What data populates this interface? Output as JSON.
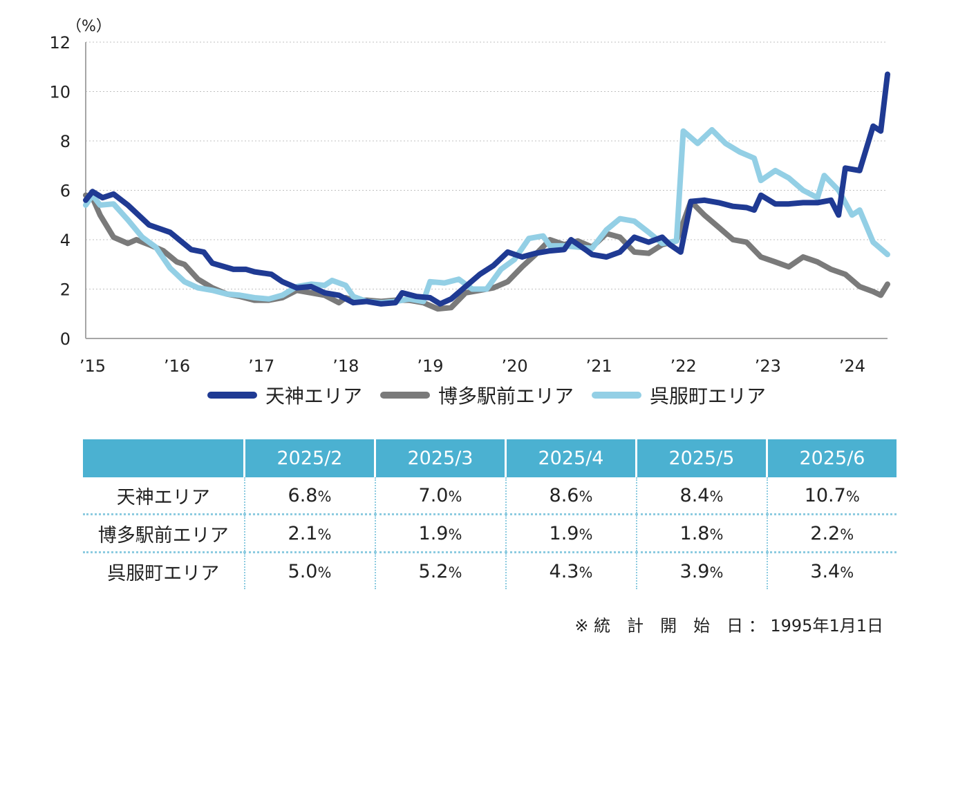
{
  "chart_data": {
    "type": "line",
    "unit_label": "（%）",
    "ylim": [
      0,
      12
    ],
    "yticks": [
      "0",
      "2",
      "4",
      "6",
      "8",
      "10",
      "12"
    ],
    "xlim": [
      2015.0,
      2024.5
    ],
    "xticks": [
      {
        "x": 2015,
        "label": "’15"
      },
      {
        "x": 2016,
        "label": "’16"
      },
      {
        "x": 2017,
        "label": "’17"
      },
      {
        "x": 2018,
        "label": "’18"
      },
      {
        "x": 2019,
        "label": "’19"
      },
      {
        "x": 2020,
        "label": "’20"
      },
      {
        "x": 2021,
        "label": "’21"
      },
      {
        "x": 2022,
        "label": "’22"
      },
      {
        "x": 2023,
        "label": "’23"
      },
      {
        "x": 2024,
        "label": "’24"
      }
    ],
    "grid": true,
    "series": [
      {
        "name": "天神エリア",
        "color": "#1f3a93",
        "points": [
          [
            2015.0,
            5.6
          ],
          [
            2015.08,
            5.95
          ],
          [
            2015.2,
            5.7
          ],
          [
            2015.33,
            5.85
          ],
          [
            2015.5,
            5.4
          ],
          [
            2015.75,
            4.6
          ],
          [
            2016.0,
            4.3
          ],
          [
            2016.25,
            3.6
          ],
          [
            2016.4,
            3.5
          ],
          [
            2016.5,
            3.05
          ],
          [
            2016.75,
            2.8
          ],
          [
            2016.9,
            2.8
          ],
          [
            2017.0,
            2.7
          ],
          [
            2017.2,
            2.6
          ],
          [
            2017.33,
            2.3
          ],
          [
            2017.5,
            2.05
          ],
          [
            2017.67,
            2.1
          ],
          [
            2017.83,
            1.85
          ],
          [
            2018.0,
            1.75
          ],
          [
            2018.17,
            1.45
          ],
          [
            2018.33,
            1.5
          ],
          [
            2018.5,
            1.4
          ],
          [
            2018.67,
            1.45
          ],
          [
            2018.75,
            1.85
          ],
          [
            2018.92,
            1.7
          ],
          [
            2019.08,
            1.65
          ],
          [
            2019.2,
            1.4
          ],
          [
            2019.33,
            1.6
          ],
          [
            2019.5,
            2.1
          ],
          [
            2019.67,
            2.6
          ],
          [
            2019.83,
            2.95
          ],
          [
            2020.0,
            3.5
          ],
          [
            2020.17,
            3.3
          ],
          [
            2020.33,
            3.45
          ],
          [
            2020.5,
            3.55
          ],
          [
            2020.67,
            3.6
          ],
          [
            2020.75,
            4.0
          ],
          [
            2020.92,
            3.6
          ],
          [
            2021.0,
            3.4
          ],
          [
            2021.17,
            3.3
          ],
          [
            2021.33,
            3.5
          ],
          [
            2021.5,
            4.1
          ],
          [
            2021.67,
            3.9
          ],
          [
            2021.83,
            4.1
          ],
          [
            2021.92,
            3.8
          ],
          [
            2022.05,
            3.5
          ],
          [
            2022.17,
            5.55
          ],
          [
            2022.33,
            5.6
          ],
          [
            2022.5,
            5.5
          ],
          [
            2022.67,
            5.35
          ],
          [
            2022.83,
            5.3
          ],
          [
            2022.92,
            5.2
          ],
          [
            2023.0,
            5.8
          ],
          [
            2023.17,
            5.45
          ],
          [
            2023.33,
            5.45
          ],
          [
            2023.5,
            5.5
          ],
          [
            2023.67,
            5.5
          ],
          [
            2023.83,
            5.6
          ],
          [
            2023.92,
            5.0
          ],
          [
            2024.0,
            6.9
          ],
          [
            2024.17,
            6.8
          ],
          [
            2024.33,
            8.6
          ],
          [
            2024.42,
            8.4
          ],
          [
            2024.5,
            10.7
          ]
        ]
      },
      {
        "name": "博多駅前エリア",
        "color": "#7a7a7a",
        "points": [
          [
            2015.0,
            5.8
          ],
          [
            2015.08,
            5.7
          ],
          [
            2015.17,
            5.0
          ],
          [
            2015.33,
            4.1
          ],
          [
            2015.5,
            3.85
          ],
          [
            2015.6,
            4.0
          ],
          [
            2015.75,
            3.8
          ],
          [
            2015.92,
            3.55
          ],
          [
            2016.08,
            3.1
          ],
          [
            2016.17,
            3.0
          ],
          [
            2016.33,
            2.4
          ],
          [
            2016.5,
            2.05
          ],
          [
            2016.67,
            1.8
          ],
          [
            2016.83,
            1.7
          ],
          [
            2017.0,
            1.55
          ],
          [
            2017.17,
            1.55
          ],
          [
            2017.33,
            1.65
          ],
          [
            2017.5,
            1.95
          ],
          [
            2017.67,
            1.85
          ],
          [
            2017.83,
            1.75
          ],
          [
            2018.0,
            1.45
          ],
          [
            2018.08,
            1.65
          ],
          [
            2018.17,
            1.55
          ],
          [
            2018.33,
            1.55
          ],
          [
            2018.5,
            1.5
          ],
          [
            2018.67,
            1.55
          ],
          [
            2018.83,
            1.55
          ],
          [
            2019.0,
            1.45
          ],
          [
            2019.17,
            1.2
          ],
          [
            2019.33,
            1.25
          ],
          [
            2019.5,
            1.85
          ],
          [
            2019.67,
            1.95
          ],
          [
            2019.83,
            2.05
          ],
          [
            2020.0,
            2.3
          ],
          [
            2020.17,
            2.9
          ],
          [
            2020.33,
            3.4
          ],
          [
            2020.5,
            4.0
          ],
          [
            2020.67,
            3.8
          ],
          [
            2020.83,
            3.95
          ],
          [
            2021.0,
            3.7
          ],
          [
            2021.17,
            4.25
          ],
          [
            2021.33,
            4.1
          ],
          [
            2021.5,
            3.5
          ],
          [
            2021.67,
            3.45
          ],
          [
            2021.83,
            3.8
          ],
          [
            2022.0,
            3.95
          ],
          [
            2022.17,
            5.55
          ],
          [
            2022.33,
            5.0
          ],
          [
            2022.5,
            4.5
          ],
          [
            2022.67,
            4.0
          ],
          [
            2022.83,
            3.9
          ],
          [
            2023.0,
            3.3
          ],
          [
            2023.17,
            3.1
          ],
          [
            2023.33,
            2.9
          ],
          [
            2023.5,
            3.3
          ],
          [
            2023.67,
            3.1
          ],
          [
            2023.83,
            2.8
          ],
          [
            2024.0,
            2.6
          ],
          [
            2024.17,
            2.1
          ],
          [
            2024.33,
            1.9
          ],
          [
            2024.42,
            1.75
          ],
          [
            2024.5,
            2.2
          ]
        ]
      },
      {
        "name": "呉服町エリア",
        "color": "#93cfe5",
        "points": [
          [
            2015.0,
            5.4
          ],
          [
            2015.08,
            5.8
          ],
          [
            2015.17,
            5.4
          ],
          [
            2015.33,
            5.45
          ],
          [
            2015.5,
            4.8
          ],
          [
            2015.67,
            4.1
          ],
          [
            2015.83,
            3.7
          ],
          [
            2016.0,
            2.85
          ],
          [
            2016.17,
            2.3
          ],
          [
            2016.33,
            2.05
          ],
          [
            2016.5,
            1.95
          ],
          [
            2016.67,
            1.8
          ],
          [
            2016.83,
            1.75
          ],
          [
            2017.0,
            1.65
          ],
          [
            2017.17,
            1.6
          ],
          [
            2017.33,
            1.75
          ],
          [
            2017.5,
            2.1
          ],
          [
            2017.67,
            2.2
          ],
          [
            2017.83,
            2.15
          ],
          [
            2017.92,
            2.35
          ],
          [
            2018.08,
            2.15
          ],
          [
            2018.17,
            1.7
          ],
          [
            2018.33,
            1.5
          ],
          [
            2018.5,
            1.45
          ],
          [
            2018.67,
            1.5
          ],
          [
            2018.83,
            1.6
          ],
          [
            2019.0,
            1.5
          ],
          [
            2019.08,
            2.3
          ],
          [
            2019.25,
            2.25
          ],
          [
            2019.42,
            2.4
          ],
          [
            2019.58,
            2.0
          ],
          [
            2019.75,
            2.0
          ],
          [
            2019.92,
            2.8
          ],
          [
            2020.08,
            3.2
          ],
          [
            2020.25,
            4.05
          ],
          [
            2020.42,
            4.15
          ],
          [
            2020.5,
            3.75
          ],
          [
            2020.67,
            3.75
          ],
          [
            2020.83,
            3.7
          ],
          [
            2021.0,
            3.65
          ],
          [
            2021.17,
            4.4
          ],
          [
            2021.33,
            4.85
          ],
          [
            2021.5,
            4.75
          ],
          [
            2021.67,
            4.3
          ],
          [
            2021.83,
            3.85
          ],
          [
            2022.0,
            3.95
          ],
          [
            2022.08,
            8.4
          ],
          [
            2022.25,
            7.9
          ],
          [
            2022.42,
            8.45
          ],
          [
            2022.58,
            7.9
          ],
          [
            2022.75,
            7.55
          ],
          [
            2022.92,
            7.3
          ],
          [
            2023.0,
            6.4
          ],
          [
            2023.17,
            6.8
          ],
          [
            2023.33,
            6.5
          ],
          [
            2023.5,
            6.0
          ],
          [
            2023.67,
            5.7
          ],
          [
            2023.75,
            6.6
          ],
          [
            2023.92,
            6.0
          ],
          [
            2024.08,
            5.0
          ],
          [
            2024.17,
            5.2
          ],
          [
            2024.33,
            3.9
          ],
          [
            2024.5,
            3.4
          ]
        ]
      }
    ]
  },
  "table": {
    "months": [
      "2025/2",
      "2025/3",
      "2025/4",
      "2025/5",
      "2025/6"
    ],
    "rows": [
      {
        "label": "天神エリア",
        "values": [
          "6.8",
          "7.0",
          "8.6",
          "8.4",
          "10.7"
        ]
      },
      {
        "label": "博多駅前エリア",
        "values": [
          "2.1",
          "1.9",
          "1.9",
          "1.8",
          "2.2"
        ]
      },
      {
        "label": "呉服町エリア",
        "values": [
          "5.0",
          "5.2",
          "4.3",
          "3.9",
          "3.4"
        ]
      }
    ],
    "pct_sign": "%"
  },
  "note": "※ 統　計　開　始　日 ： 1995年1月1日"
}
